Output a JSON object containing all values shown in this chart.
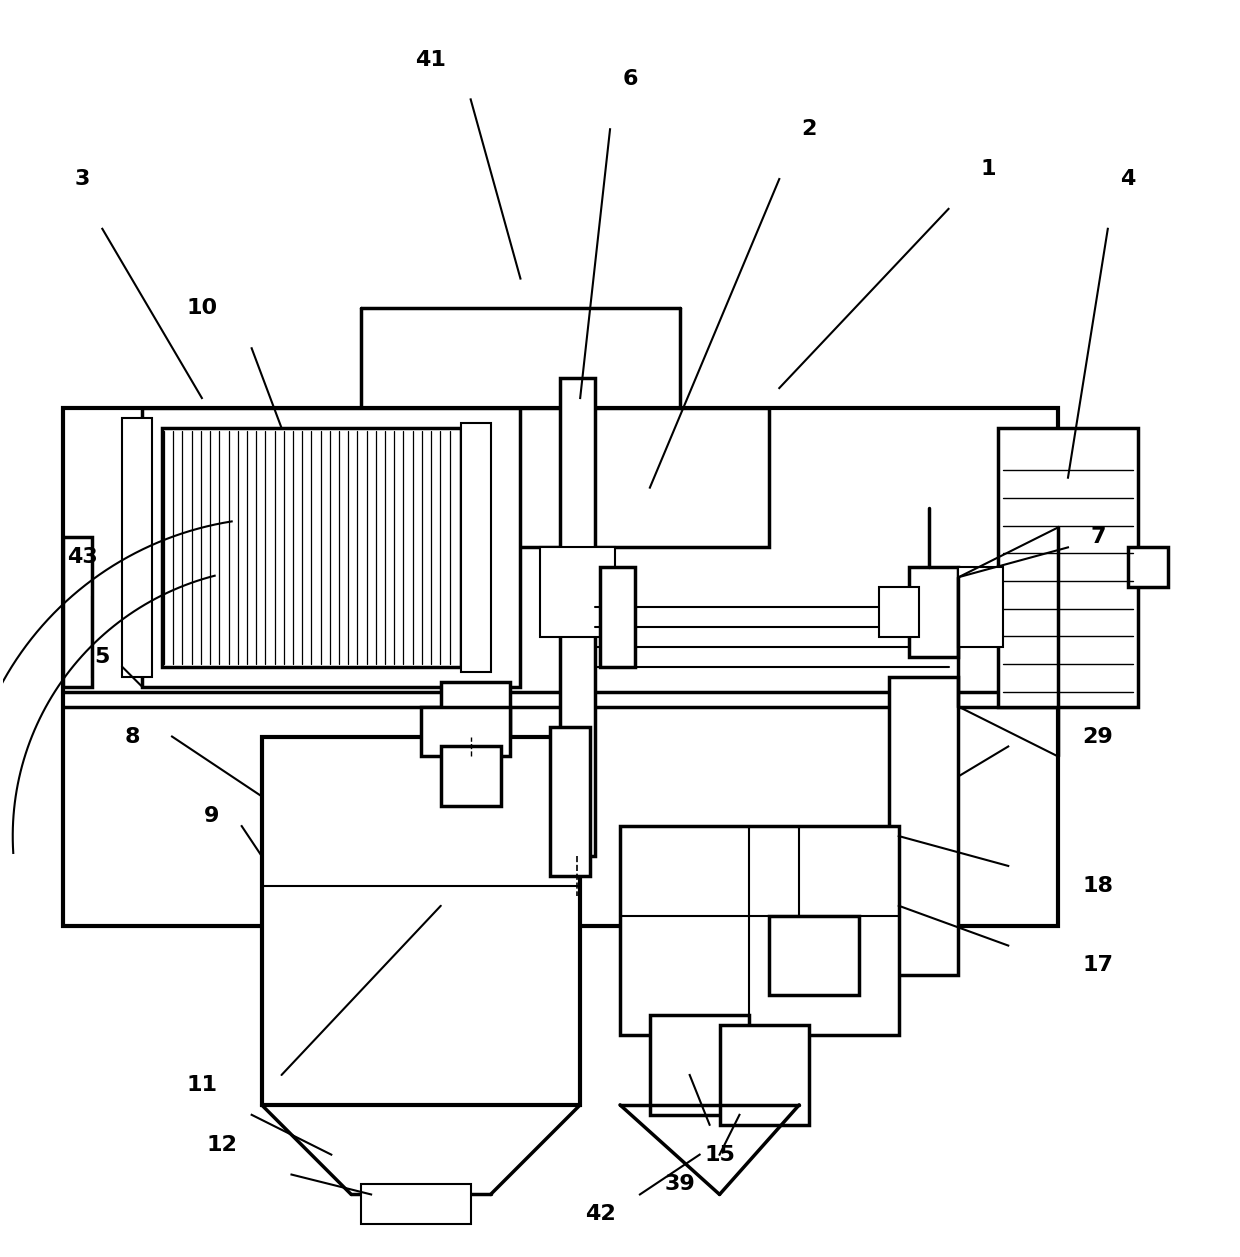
{
  "bg_color": "#ffffff",
  "lc": "#000000",
  "lw": 2.5,
  "tlw": 1.5
}
